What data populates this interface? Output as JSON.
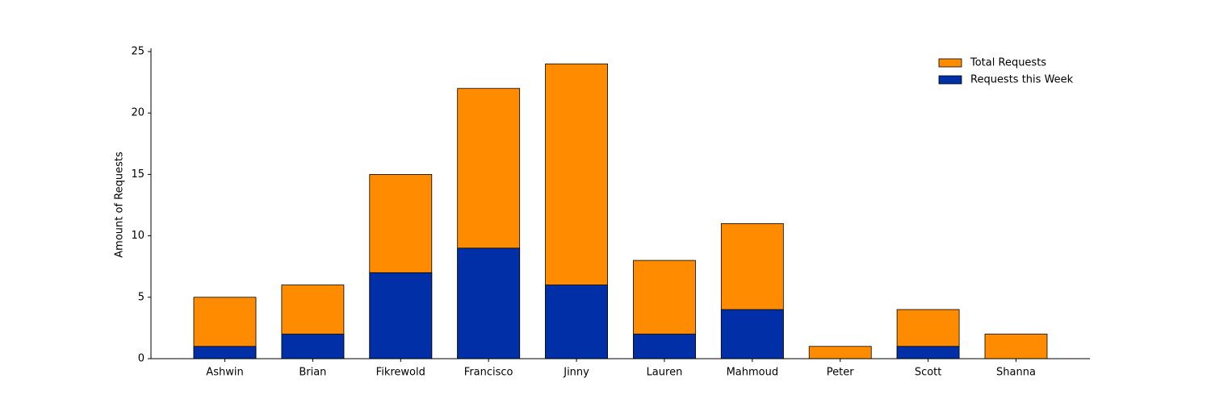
{
  "chart_data": {
    "type": "bar",
    "barmode": "overlay",
    "y_label": "Amount of Requests",
    "categories": [
      "Ashwin",
      "Brian",
      "Fikrewold",
      "Francisco",
      "Jinny",
      "Lauren",
      "Mahmoud",
      "Peter",
      "Scott",
      "Shanna"
    ],
    "series": [
      {
        "name": "Total Requests",
        "color": "#ff8c00",
        "values": [
          5,
          6,
          15,
          22,
          24,
          8,
          11,
          1,
          4,
          2
        ]
      },
      {
        "name": "Requests this Week",
        "color": "#002fa7",
        "values": [
          1,
          2,
          7,
          9,
          6,
          2,
          4,
          0,
          1,
          0
        ]
      }
    ],
    "ylim": [
      0,
      25
    ],
    "yticks": [
      0,
      5,
      10,
      15,
      20,
      25
    ],
    "grid": false,
    "legend": "upper right"
  }
}
